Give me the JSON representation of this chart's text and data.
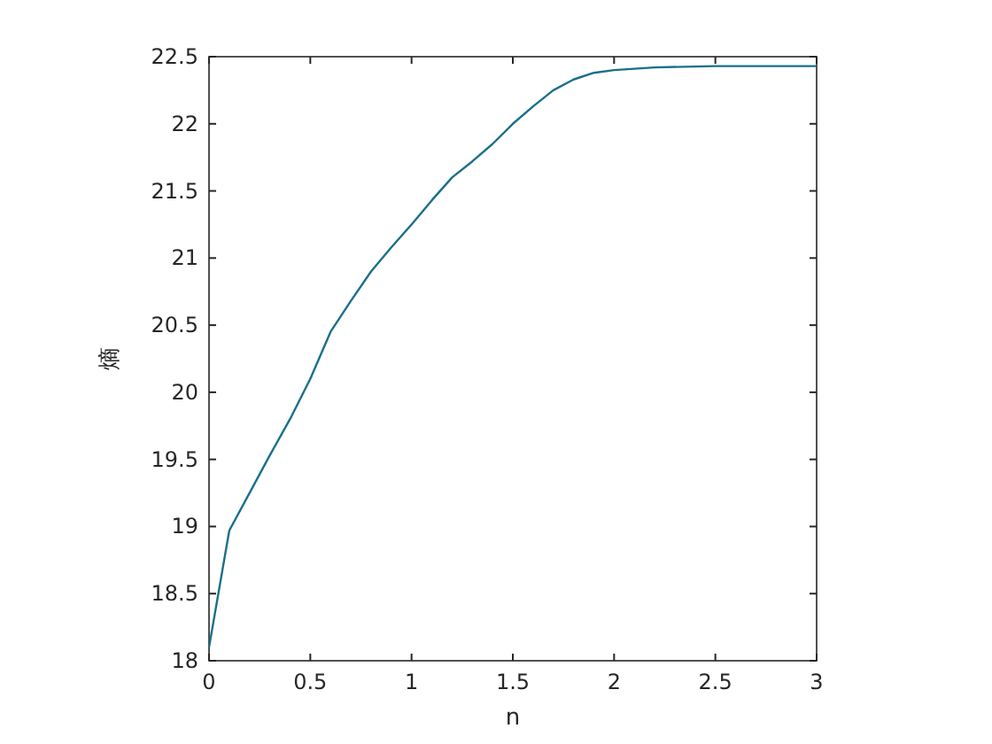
{
  "chart_data": {
    "type": "line",
    "xlabel": "n",
    "ylabel": "熵",
    "x": [
      0,
      0.1,
      0.2,
      0.3,
      0.4,
      0.5,
      0.6,
      0.7,
      0.8,
      0.9,
      1.0,
      1.1,
      1.2,
      1.3,
      1.4,
      1.5,
      1.6,
      1.7,
      1.8,
      1.9,
      2.0,
      2.2,
      2.5,
      3.0
    ],
    "series": [
      {
        "color": "#1b6f8a",
        "values": [
          18.1,
          18.97,
          19.25,
          19.53,
          19.8,
          20.1,
          20.45,
          20.68,
          20.9,
          21.08,
          21.25,
          21.43,
          21.6,
          21.72,
          21.85,
          22.0,
          22.13,
          22.25,
          22.33,
          22.38,
          22.4,
          22.42,
          22.43,
          22.43
        ]
      }
    ],
    "xlim": [
      0,
      3
    ],
    "ylim": [
      18,
      22.5
    ],
    "xticks": [
      0,
      0.5,
      1,
      1.5,
      2,
      2.5,
      3
    ],
    "yticks": [
      18,
      18.5,
      19,
      19.5,
      20,
      20.5,
      21,
      21.5,
      22,
      22.5
    ]
  }
}
